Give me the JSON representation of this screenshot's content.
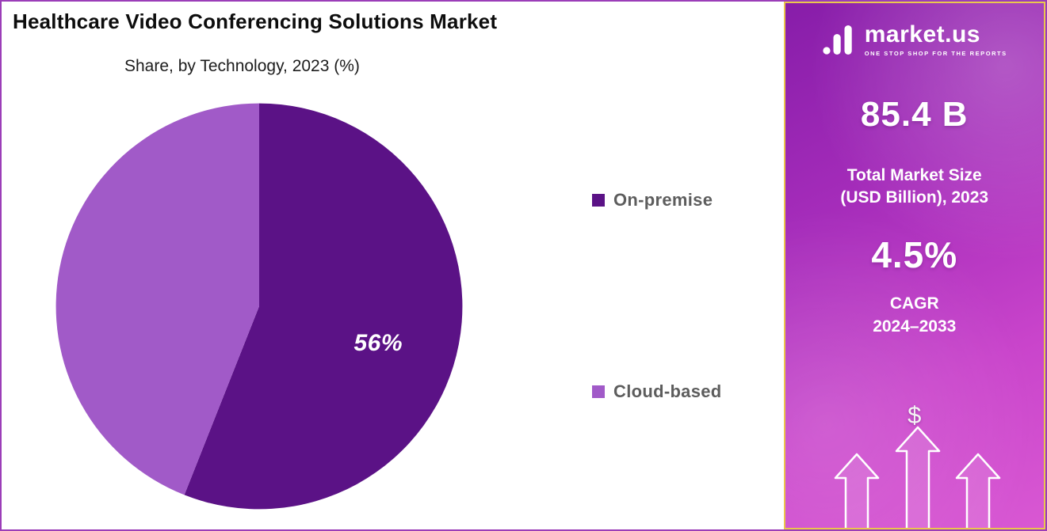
{
  "chart_data": {
    "type": "pie",
    "title": "Healthcare Video Conferencing Solutions Market",
    "subtitle": "Share, by Technology, 2023 (%)",
    "slices": [
      {
        "label": "On-premise",
        "value": 56,
        "data_label": "56%",
        "color": "#5b1286"
      },
      {
        "label": "Cloud-based",
        "value": 44,
        "data_label": "",
        "color": "#a15ac8"
      }
    ],
    "start_angle_deg": 0,
    "direction": "clockwise",
    "legend_position": "right"
  },
  "sidebar": {
    "logo": {
      "brand": "market.us",
      "tagline": "ONE STOP SHOP FOR THE REPORTS"
    },
    "stats": {
      "market_size_value": "85.4 B",
      "market_size_label_line1": "Total Market Size",
      "market_size_label_line2": "(USD Billion), 2023",
      "cagr_value": "4.5%",
      "cagr_label": "CAGR",
      "cagr_period": "2024–2033",
      "currency_symbol": "$"
    },
    "colors": {
      "panel_gradient_start": "#871da9",
      "panel_gradient_end": "#d958d3",
      "panel_border": "#eac74d",
      "outer_border": "#9b3db8",
      "text": "#ffffff"
    }
  }
}
